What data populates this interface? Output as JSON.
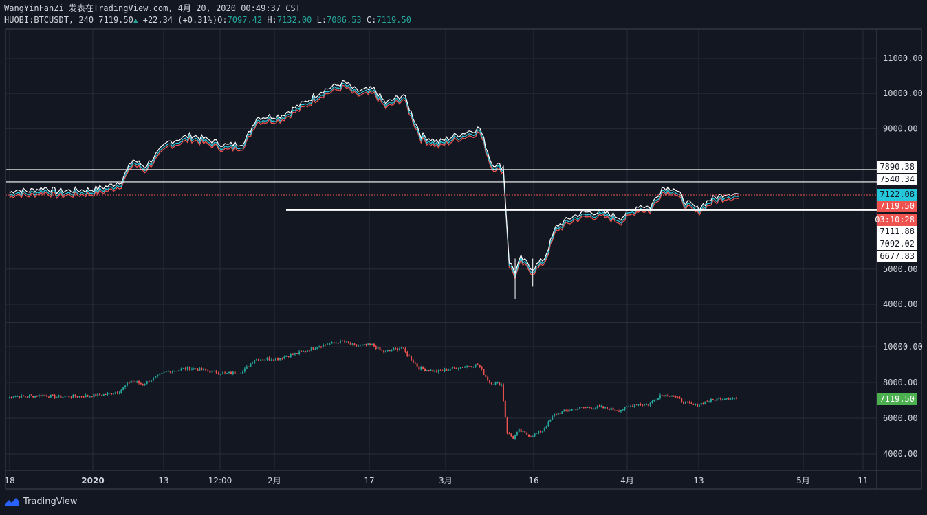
{
  "header": {
    "line1": "WangYinFanZi 发表在TradingView.com, 4月 20, 2020 00:49:37 CST",
    "symbol": "HUOBI:BTCUSDT, 240",
    "last": "7119.50",
    "change": "+22.34 (+0.31%)",
    "o_label": "O:",
    "o_value": "7097.42",
    "h_label": "H:",
    "h_value": "7132.00",
    "l_label": "L:",
    "l_value": "7086.53",
    "c_label": "C:",
    "c_value": "7119.50"
  },
  "footer": {
    "brand": "TradingView",
    "icon": "tradingview-logo-icon"
  },
  "colors": {
    "bg": "#131722",
    "grid": "#2a2e39",
    "up": "#26a69a",
    "down": "#ef5350",
    "white": "#ffffff",
    "cyan": "#26c6da",
    "green_tag": "#4caf50"
  },
  "time_axis": [
    "18",
    "2020",
    "13",
    "12:00",
    "2月",
    "17",
    "3月",
    "16",
    "4月",
    "13",
    "5月",
    "11"
  ],
  "chart_data": [
    {
      "type": "line",
      "pane": "upper",
      "series": [],
      "price_ticks": [
        "11000.00",
        "10000.00",
        "9000.00",
        "5000.00",
        "4000.00"
      ],
      "ylim": [
        3500,
        11600
      ],
      "horizontal_levels": [
        7890.38,
        7540.34,
        7111.88
      ],
      "price_tags": [
        {
          "label": "7890.38",
          "style": "white"
        },
        {
          "label": "7540.34",
          "style": "white"
        },
        {
          "label": "7122.08",
          "style": "cyan"
        },
        {
          "label": "7119.50",
          "style": "red"
        },
        {
          "label": "03:10:28",
          "style": "red"
        },
        {
          "label": "7111.88",
          "style": "white"
        },
        {
          "label": "7092.02",
          "style": "white"
        },
        {
          "label": "6677.83",
          "style": "white"
        }
      ],
      "price_path": [
        [
          "2019-12-18",
          7150
        ],
        [
          "2019-12-19",
          7250
        ],
        [
          "2019-12-21",
          7200
        ],
        [
          "2019-12-24",
          7300
        ],
        [
          "2019-12-26",
          7200
        ],
        [
          "2020-01-01",
          7250
        ],
        [
          "2020-01-04",
          7350
        ],
        [
          "2020-01-06",
          7500
        ],
        [
          "2020-01-08",
          8100
        ],
        [
          "2020-01-10",
          7900
        ],
        [
          "2020-01-14",
          8600
        ],
        [
          "2020-01-18",
          8800
        ],
        [
          "2020-01-20",
          8700
        ],
        [
          "2020-01-24",
          8500
        ],
        [
          "2020-01-27",
          8600
        ],
        [
          "2020-01-29",
          9300
        ],
        [
          "2020-02-02",
          9350
        ],
        [
          "2020-02-06",
          9700
        ],
        [
          "2020-02-09",
          10050
        ],
        [
          "2020-02-13",
          10300
        ],
        [
          "2020-02-15",
          10050
        ],
        [
          "2020-02-18",
          10100
        ],
        [
          "2020-02-20",
          9700
        ],
        [
          "2020-02-23",
          9950
        ],
        [
          "2020-02-26",
          8800
        ],
        [
          "2020-02-29",
          8600
        ],
        [
          "2020-03-03",
          8800
        ],
        [
          "2020-03-07",
          9000
        ],
        [
          "2020-03-09",
          8000
        ],
        [
          "2020-03-11",
          7900
        ],
        [
          "2020-03-12",
          5200
        ],
        [
          "2020-03-13",
          4900
        ],
        [
          "2020-03-14",
          5300
        ],
        [
          "2020-03-16",
          5000
        ],
        [
          "2020-03-18",
          5300
        ],
        [
          "2020-03-20",
          6200
        ],
        [
          "2020-03-23",
          6500
        ],
        [
          "2020-03-25",
          6600
        ],
        [
          "2020-03-28",
          6600
        ],
        [
          "2020-03-31",
          6450
        ],
        [
          "2020-04-03",
          6800
        ],
        [
          "2020-04-05",
          6750
        ],
        [
          "2020-04-07",
          7300
        ],
        [
          "2020-04-09",
          7300
        ],
        [
          "2020-04-11",
          6900
        ],
        [
          "2020-04-13",
          6700
        ],
        [
          "2020-04-15",
          6950
        ],
        [
          "2020-04-18",
          7150
        ],
        [
          "2020-04-20",
          7120
        ]
      ]
    },
    {
      "type": "line",
      "pane": "lower",
      "series": [],
      "price_ticks": [
        "10000.00",
        "8000.00",
        "6000.00",
        "4000.00"
      ],
      "ylim": [
        3200,
        10900
      ],
      "last_price_tag": "7119.50"
    }
  ]
}
